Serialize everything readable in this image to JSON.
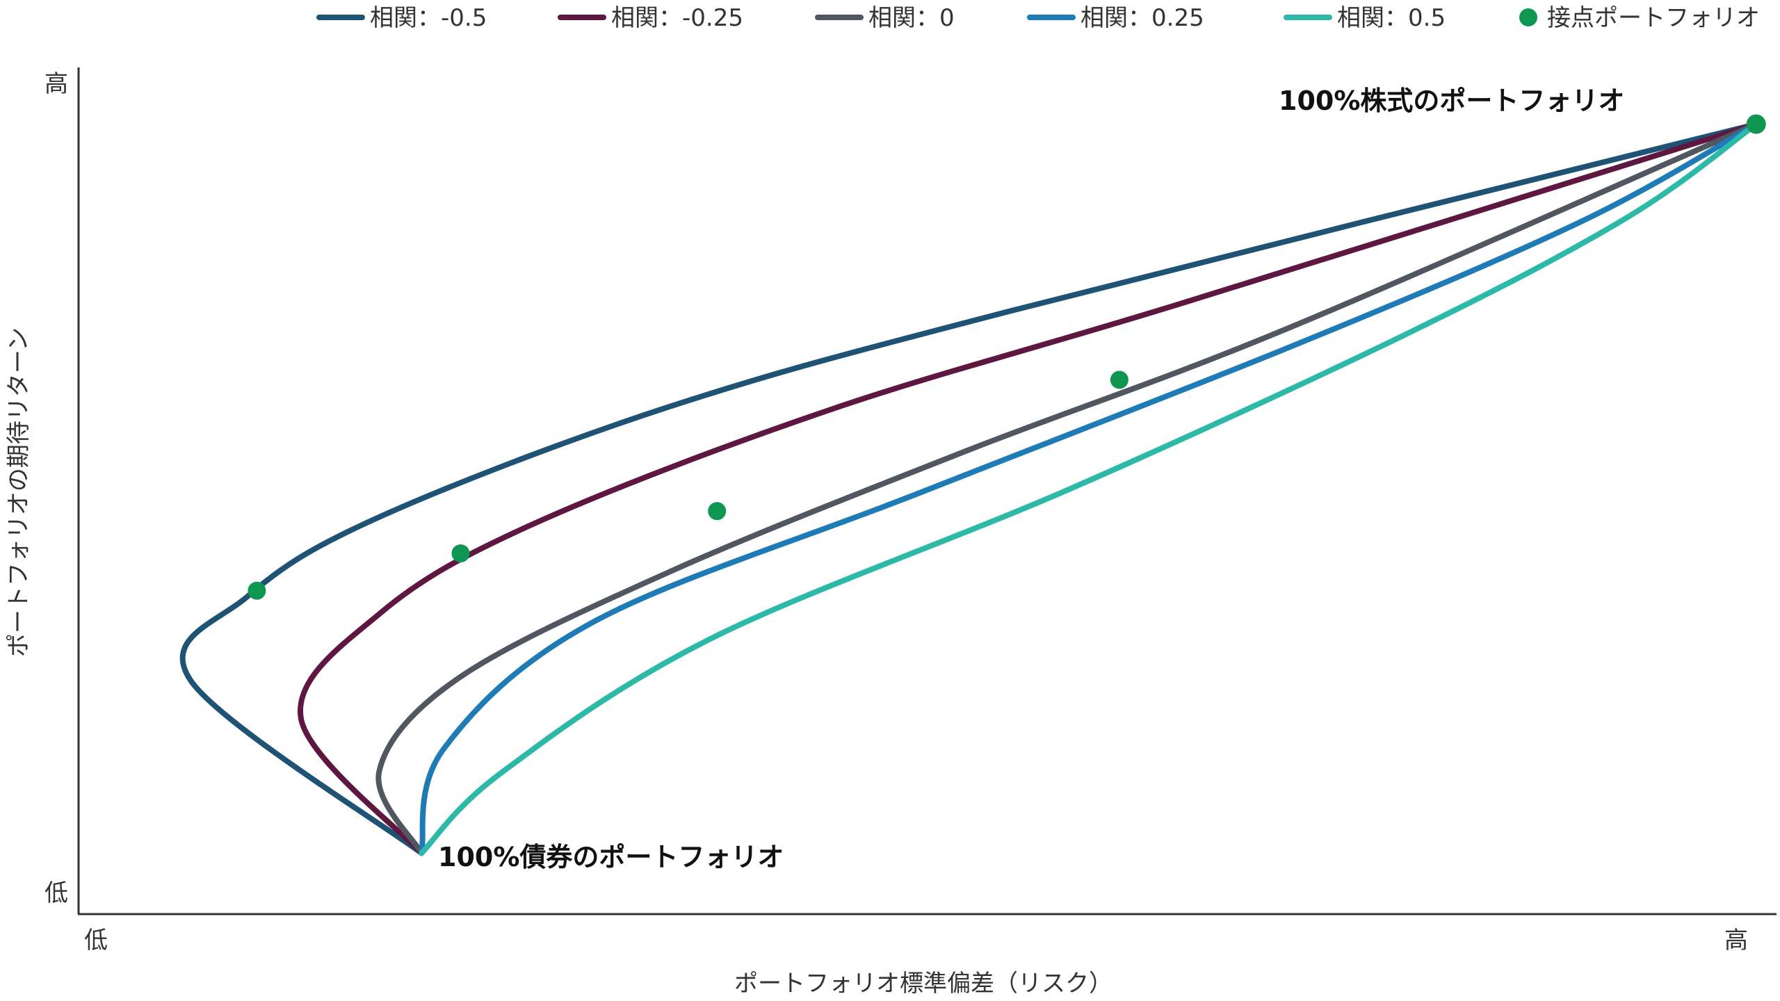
{
  "chart_data": {
    "type": "line",
    "title": "",
    "xlabel": "ポートフォリオ標準偏差（リスク）",
    "ylabel": "ポートフォリオの期待リターン",
    "x_ticks": {
      "low": "低",
      "high": "高"
    },
    "y_ticks": {
      "low": "低",
      "high": "高"
    },
    "xlim": [
      0,
      100
    ],
    "ylim": [
      0,
      100
    ],
    "grid": false,
    "legend_position": "top",
    "annotations": {
      "stocks": "100%株式のポートフォリオ",
      "bonds": "100%債券のポートフォリオ"
    },
    "endpoints": {
      "bonds": {
        "x": 20.2,
        "y": 7.2
      },
      "stocks": {
        "x": 98.8,
        "y": 93.3
      }
    },
    "series": [
      {
        "name": "相関：-0.5",
        "color": "#1f5375",
        "correlation": -0.5,
        "points": [
          [
            20.2,
            7.2
          ],
          [
            6.6,
            27.6
          ],
          [
            10.0,
            37.6
          ],
          [
            17.6,
            46.8
          ],
          [
            34.6,
            59.8
          ],
          [
            55.0,
            71.3
          ],
          [
            98.8,
            93.3
          ]
        ],
        "tangent": {
          "x": 10.5,
          "y": 38.2
        }
      },
      {
        "name": "相関：-0.25",
        "color": "#5e1741",
        "correlation": -0.25,
        "points": [
          [
            20.2,
            7.2
          ],
          [
            13.1,
            23.1
          ],
          [
            17.8,
            35.6
          ],
          [
            26.8,
            46.1
          ],
          [
            44.3,
            59.6
          ],
          [
            64.9,
            72.1
          ],
          [
            98.8,
            93.3
          ]
        ],
        "tangent": {
          "x": 22.5,
          "y": 42.6
        }
      },
      {
        "name": "相関：0",
        "color": "#505760",
        "correlation": 0,
        "points": [
          [
            20.2,
            7.2
          ],
          [
            17.7,
            16.8
          ],
          [
            22.4,
            27.9
          ],
          [
            35.0,
            40.6
          ],
          [
            52.4,
            54.8
          ],
          [
            71.0,
            69.0
          ],
          [
            98.8,
            93.3
          ]
        ],
        "tangent": {
          "x": 37.6,
          "y": 47.6
        }
      },
      {
        "name": "相関：0.25",
        "color": "#1f7bb6",
        "correlation": 0.25,
        "points": [
          [
            20.2,
            7.2
          ],
          [
            21.5,
            19.5
          ],
          [
            30.4,
            34.6
          ],
          [
            49.6,
            49.8
          ],
          [
            72.1,
            67.6
          ],
          [
            88.6,
            81.9
          ],
          [
            98.8,
            93.3
          ]
        ],
        "tangent": {
          "x": 61.3,
          "y": 63.1
        }
      },
      {
        "name": "相関：0.5",
        "color": "#2db9a8",
        "correlation": 0.5,
        "points": [
          [
            20.2,
            7.2
          ],
          [
            24.9,
            16.7
          ],
          [
            37.3,
            32.6
          ],
          [
            58.6,
            50.4
          ],
          [
            78.6,
            68.9
          ],
          [
            91.3,
            82.4
          ],
          [
            98.8,
            93.3
          ]
        ],
        "tangent": null
      }
    ],
    "tangent_legend": {
      "name": "接点ポートフォリオ",
      "color": "#0f9650"
    }
  }
}
